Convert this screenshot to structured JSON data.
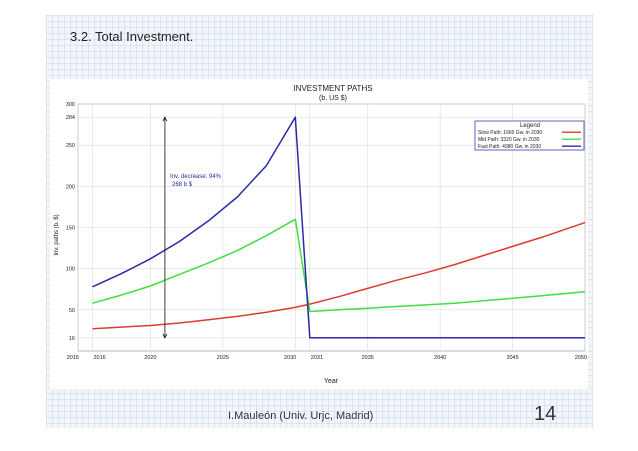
{
  "slide": {
    "title": "3.2. Total Investment.",
    "footer": "I.Mauleón (Univ. Urjc, Madrid)",
    "page_number": "14"
  },
  "chart_data": {
    "type": "line",
    "title": "INVESTMENT PATHS",
    "subtitle": "(b. US $)",
    "xlabel": "Year",
    "ylabel": "Inv. paths (b. $)",
    "xlim": [
      2015,
      2050
    ],
    "ylim": [
      0,
      300
    ],
    "x_ticks": [
      2015,
      2016,
      2020,
      2025,
      2030,
      2031,
      2035,
      2040,
      2045,
      2050
    ],
    "x_tick_labels": [
      "2015",
      "2016",
      "2020",
      "2025",
      "2030",
      "2031",
      "2035",
      "2040",
      "2045",
      "2050"
    ],
    "y_ticks": [
      16,
      50,
      100,
      150,
      200,
      250,
      284,
      300
    ],
    "y_tick_labels": [
      "16",
      "50",
      "100",
      "150",
      "200",
      "250",
      "284",
      "300"
    ],
    "grid": true,
    "legend": {
      "title": "Legend",
      "placement": "top-right"
    },
    "annotation": {
      "lines": [
        "Inv. decrease: 94%",
        "268 b $"
      ],
      "arrow_year": 2021,
      "arrow_from": 284,
      "arrow_to": 16
    },
    "series": [
      {
        "name": "Slow Path: 1660 Gw. in 2030",
        "color": "#e03a2e",
        "points": [
          [
            2016,
            27
          ],
          [
            2018,
            29
          ],
          [
            2020,
            31
          ],
          [
            2022,
            34
          ],
          [
            2024,
            38
          ],
          [
            2026,
            42
          ],
          [
            2028,
            47
          ],
          [
            2030,
            53
          ],
          [
            2031,
            57
          ],
          [
            2033,
            66
          ],
          [
            2035,
            76
          ],
          [
            2037,
            86
          ],
          [
            2039,
            95
          ],
          [
            2041,
            105
          ],
          [
            2043,
            116
          ],
          [
            2045,
            127
          ],
          [
            2047,
            138
          ],
          [
            2050,
            156
          ]
        ]
      },
      {
        "name": "Mid Path: 3320 Gw. in 2030",
        "color": "#40e040",
        "points": [
          [
            2016,
            58
          ],
          [
            2018,
            68
          ],
          [
            2020,
            79
          ],
          [
            2022,
            93
          ],
          [
            2024,
            107
          ],
          [
            2026,
            122
          ],
          [
            2028,
            140
          ],
          [
            2030,
            160
          ],
          [
            2031,
            48
          ],
          [
            2033,
            50
          ],
          [
            2035,
            52
          ],
          [
            2037,
            54
          ],
          [
            2039,
            56
          ],
          [
            2041,
            58
          ],
          [
            2043,
            61
          ],
          [
            2045,
            64
          ],
          [
            2047,
            67
          ],
          [
            2050,
            72
          ]
        ]
      },
      {
        "name": "Fast Path: 4980 Gw. in 2030",
        "color": "#2a2aa8",
        "points": [
          [
            2016,
            78
          ],
          [
            2018,
            94
          ],
          [
            2020,
            112
          ],
          [
            2022,
            133
          ],
          [
            2024,
            158
          ],
          [
            2026,
            187
          ],
          [
            2028,
            225
          ],
          [
            2030,
            284
          ],
          [
            2031,
            16
          ],
          [
            2035,
            16
          ],
          [
            2040,
            16
          ],
          [
            2045,
            16
          ],
          [
            2050,
            16
          ]
        ]
      }
    ]
  }
}
